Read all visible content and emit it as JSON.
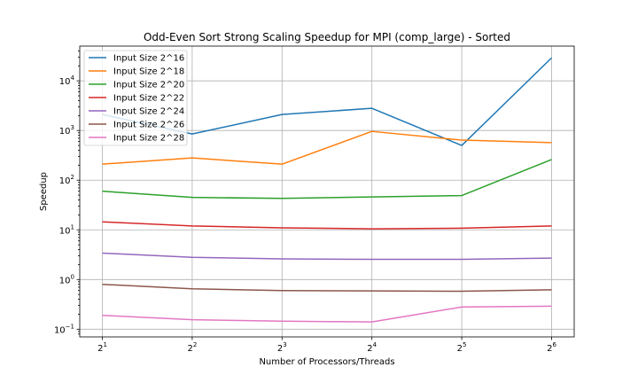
{
  "chart_data": {
    "type": "line",
    "title": "Odd-Even Sort Strong Scaling Speedup for MPI (comp_large) - Sorted",
    "xlabel": "Number of Processors/Threads",
    "ylabel": "Speedup",
    "x": [
      2,
      4,
      8,
      16,
      32,
      64
    ],
    "x_scale": "log2",
    "x_tick_labels": [
      {
        "base": "2",
        "exp": "1"
      },
      {
        "base": "2",
        "exp": "2"
      },
      {
        "base": "2",
        "exp": "3"
      },
      {
        "base": "2",
        "exp": "4"
      },
      {
        "base": "2",
        "exp": "5"
      },
      {
        "base": "2",
        "exp": "6"
      }
    ],
    "y_scale": "log10",
    "ylim": [
      0.07,
      50000
    ],
    "y_ticks": [
      0.1,
      1,
      10,
      100,
      1000,
      10000
    ],
    "y_tick_labels": [
      {
        "base": "10",
        "exp": "−1"
      },
      {
        "base": "10",
        "exp": "0"
      },
      {
        "base": "10",
        "exp": "1"
      },
      {
        "base": "10",
        "exp": "2"
      },
      {
        "base": "10",
        "exp": "3"
      },
      {
        "base": "10",
        "exp": "4"
      }
    ],
    "grid": true,
    "legend_position": "top-left",
    "series": [
      {
        "name": "Input Size 2^16",
        "color": "#1f77b4",
        "values": [
          2100,
          850,
          2100,
          2800,
          500,
          29000
        ]
      },
      {
        "name": "Input Size 2^18",
        "color": "#ff7f0e",
        "values": [
          210,
          280,
          210,
          960,
          640,
          570
        ]
      },
      {
        "name": "Input Size 2^20",
        "color": "#2ca02c",
        "values": [
          60,
          45,
          43,
          46,
          49,
          260
        ]
      },
      {
        "name": "Input Size 2^22",
        "color": "#d62728",
        "values": [
          14.5,
          12,
          11,
          10.5,
          10.8,
          12
        ]
      },
      {
        "name": "Input Size 2^24",
        "color": "#9467bd",
        "values": [
          3.4,
          2.8,
          2.6,
          2.55,
          2.55,
          2.7
        ]
      },
      {
        "name": "Input Size 2^26",
        "color": "#8c564b",
        "values": [
          0.8,
          0.65,
          0.6,
          0.59,
          0.58,
          0.62
        ]
      },
      {
        "name": "Input Size 2^28",
        "color": "#e377c2",
        "values": [
          0.19,
          0.155,
          0.145,
          0.14,
          0.28,
          0.29
        ]
      }
    ]
  }
}
